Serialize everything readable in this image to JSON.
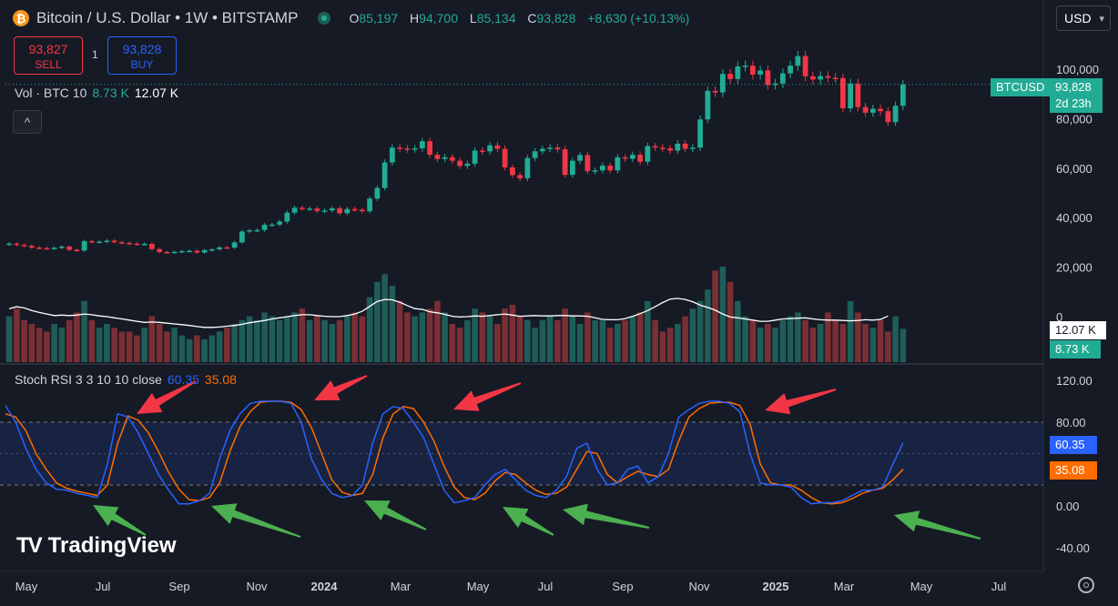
{
  "header": {
    "logo_glyph": "₿",
    "symbol_title": "Bitcoin / U.S. Dollar • 1W • BITSTAMP",
    "ohlc": [
      {
        "key": "O",
        "value": "85,197"
      },
      {
        "key": "H",
        "value": "94,700"
      },
      {
        "key": "L",
        "value": "85,134"
      },
      {
        "key": "C",
        "value": "93,828"
      }
    ],
    "change": "+8,630 (+10.13%)",
    "currency": "USD"
  },
  "trade": {
    "sell_price": "93,827",
    "sell_label": "SELL",
    "buy_price": "93,828",
    "buy_label": "BUY",
    "spread": "1"
  },
  "volume_legend": {
    "label": "Vol · BTC 10",
    "value1": "8.73 K",
    "value2": "12.07 K"
  },
  "collapse_glyph": "^",
  "stoch_legend": {
    "label": "Stoch RSI 3 3 10 10 close",
    "k": "60.35",
    "d": "35.08"
  },
  "price_tags": {
    "symbol": "BTCUSD",
    "price": "93,828",
    "countdown": "2d 23h",
    "vol_ma": "12.07 K",
    "vol": "8.73 K",
    "stoch_k": "60.35",
    "stoch_d": "35.08"
  },
  "colors": {
    "up": "#22ab94",
    "down": "#f23645",
    "k_line": "#2962ff",
    "d_line": "#ff6d00",
    "volume_up": "#1f5d58",
    "volume_down": "#7a2f35",
    "annotation_red": "#f23645",
    "annotation_green": "#4caf50"
  },
  "brand": {
    "name": "TradingView",
    "mark": "TV"
  },
  "settings_icon": "gear-icon",
  "chart_data": [
    {
      "type": "candlestick",
      "title": "Bitcoin / U.S. Dollar • 1W • BITSTAMP",
      "y_ticks": [
        "100,000",
        "80,000",
        "60,000",
        "40,000",
        "20,000",
        "0"
      ],
      "ylim": [
        0,
        110000
      ],
      "x_ticks": [
        "May",
        "Jul",
        "Sep",
        "Nov",
        "2024",
        "Mar",
        "May",
        "Jul",
        "Sep",
        "Nov",
        "2025",
        "Mar",
        "May",
        "Jul"
      ],
      "grid": false,
      "close": [
        29500,
        29000,
        28600,
        27900,
        27700,
        27500,
        27800,
        28300,
        27000,
        26700,
        30500,
        30200,
        30300,
        30700,
        30100,
        29800,
        29500,
        29300,
        29400,
        27300,
        26100,
        26000,
        26200,
        26500,
        26600,
        25900,
        26900,
        27200,
        28000,
        27900,
        30000,
        34400,
        34900,
        35000,
        37100,
        37200,
        38400,
        42000,
        44000,
        43600,
        43700,
        42700,
        42900,
        43800,
        41800,
        43500,
        43200,
        42600,
        47700,
        52000,
        62300,
        68300,
        68000,
        67600,
        68000,
        70900,
        65400,
        63700,
        64400,
        63000,
        60900,
        61800,
        67100,
        66800,
        69200,
        67800,
        60300,
        57200,
        55900,
        64100,
        66800,
        67800,
        68300,
        67600,
        57300,
        63000,
        65300,
        58800,
        59100,
        61000,
        59100,
        64400,
        63800,
        65400,
        62600,
        68900,
        68300,
        68000,
        67100,
        69900,
        67800,
        68300,
        79700,
        91200,
        90600,
        98100,
        96000,
        101100,
        101400,
        97800,
        99500,
        93600,
        94200,
        98300,
        101400,
        105300,
        97100,
        95800,
        97200,
        96500,
        96400,
        84200,
        94200,
        84700,
        82400,
        84000,
        83000,
        78600,
        85200,
        93828
      ],
      "open_note": "each candle opens at previous close"
    },
    {
      "type": "bar",
      "title": "Vol · BTC 10",
      "series": [
        {
          "name": "Vol",
          "values_thousands_est": [
            12,
            14,
            11,
            10,
            9,
            8,
            10,
            9,
            11,
            13,
            16,
            11,
            9,
            10,
            9,
            8,
            8,
            7,
            9,
            12,
            10,
            8,
            9,
            7,
            6,
            7,
            6,
            7,
            8,
            9,
            10,
            11,
            12,
            11,
            13,
            12,
            11,
            12,
            13,
            14,
            11,
            12,
            11,
            10,
            11,
            12,
            13,
            12,
            17,
            21,
            23,
            20,
            16,
            13,
            12,
            13,
            14,
            16,
            13,
            10,
            9,
            11,
            14,
            13,
            12,
            10,
            14,
            15,
            12,
            11,
            9,
            11,
            12,
            11,
            14,
            12,
            10,
            13,
            11,
            11,
            9,
            10,
            11,
            12,
            13,
            16,
            11,
            8,
            9,
            10,
            12,
            14,
            16,
            19,
            24,
            25,
            21,
            16,
            12,
            11,
            9,
            10,
            9,
            11,
            12,
            13,
            11,
            9,
            10,
            13,
            11,
            10,
            16,
            13,
            10,
            9,
            11,
            8,
            12,
            8.73
          ]
        },
        {
          "name": "MA",
          "values_thousands_est": [
            14,
            14.5,
            14.2,
            13.5,
            13,
            12.6,
            12.2,
            12.3,
            12.2,
            12.3,
            12.6,
            12.4,
            12.1,
            11.9,
            11.6,
            11.3,
            11,
            10.7,
            10.4,
            10.5,
            10.4,
            10.2,
            10,
            9.8,
            9.6,
            9.3,
            9.1,
            9.1,
            9.2,
            9.4,
            9.6,
            9.9,
            10.3,
            10.6,
            10.9,
            11.3,
            11.6,
            11.9,
            12.2,
            12.4,
            12.4,
            12.2,
            12,
            11.9,
            11.9,
            12.2,
            12.6,
            13.3,
            14.6,
            15.9,
            16.4,
            16.3,
            15.7,
            14.8,
            14,
            13.8,
            13.2,
            12.9,
            12.5,
            12,
            11.8,
            11.9,
            12.1,
            12,
            12.2,
            12.4,
            12.6,
            12.3,
            12,
            12.1,
            12.2,
            12.1,
            12.1,
            12.2,
            12.2,
            12.1,
            12.1,
            12,
            11.6,
            11.2,
            11.1,
            11.1,
            11.4,
            12,
            12.7,
            13.5,
            14.5,
            15.6,
            16.5,
            16.7,
            16.4,
            15.8,
            14.9,
            14.3,
            13.6,
            12.6,
            11.8,
            11.6,
            11.3,
            11,
            10.7,
            10.7,
            11,
            11.3,
            11.4,
            11.5,
            11.6,
            11.3,
            11.1,
            11,
            11,
            10.9,
            10.8,
            10.9,
            11.1,
            11,
            11.2,
            12.07
          ]
        }
      ]
    },
    {
      "type": "line",
      "title": "Stoch RSI 3 3 10 10 close",
      "y_ticks": [
        "120.00",
        "80.00",
        "0.00",
        "-40.00"
      ],
      "ylim": [
        -50,
        125
      ],
      "bands": [
        80,
        20
      ],
      "mid": 50,
      "series": [
        {
          "name": "K",
          "values": [
            96,
            80,
            55,
            35,
            22,
            16,
            15,
            12,
            10,
            8,
            40,
            88,
            85,
            70,
            50,
            30,
            15,
            2,
            2,
            5,
            12,
            45,
            72,
            88,
            98,
            100,
            100,
            100,
            98,
            80,
            45,
            25,
            12,
            8,
            10,
            20,
            60,
            88,
            95,
            93,
            80,
            65,
            40,
            15,
            3,
            5,
            8,
            20,
            30,
            35,
            25,
            15,
            10,
            8,
            15,
            28,
            55,
            60,
            35,
            20,
            22,
            35,
            38,
            22,
            28,
            50,
            85,
            92,
            98,
            100,
            100,
            98,
            90,
            50,
            22,
            20,
            20,
            18,
            8,
            2,
            3,
            3,
            5,
            10,
            15,
            15,
            18,
            40,
            60.35
          ]
        },
        {
          "name": "D",
          "values": [
            88,
            85,
            72,
            50,
            35,
            22,
            17,
            14,
            12,
            10,
            20,
            60,
            86,
            82,
            70,
            52,
            32,
            16,
            6,
            5,
            8,
            22,
            52,
            76,
            90,
            99,
            100,
            100,
            99,
            92,
            75,
            50,
            25,
            13,
            10,
            12,
            30,
            65,
            88,
            95,
            93,
            80,
            62,
            38,
            18,
            8,
            6,
            12,
            24,
            32,
            30,
            22,
            15,
            11,
            12,
            18,
            35,
            52,
            50,
            30,
            22,
            28,
            33,
            30,
            28,
            35,
            62,
            85,
            93,
            98,
            99,
            99,
            96,
            78,
            40,
            22,
            20,
            20,
            15,
            8,
            3,
            2,
            3,
            7,
            12,
            15,
            17,
            25,
            35.08
          ]
        }
      ]
    }
  ]
}
